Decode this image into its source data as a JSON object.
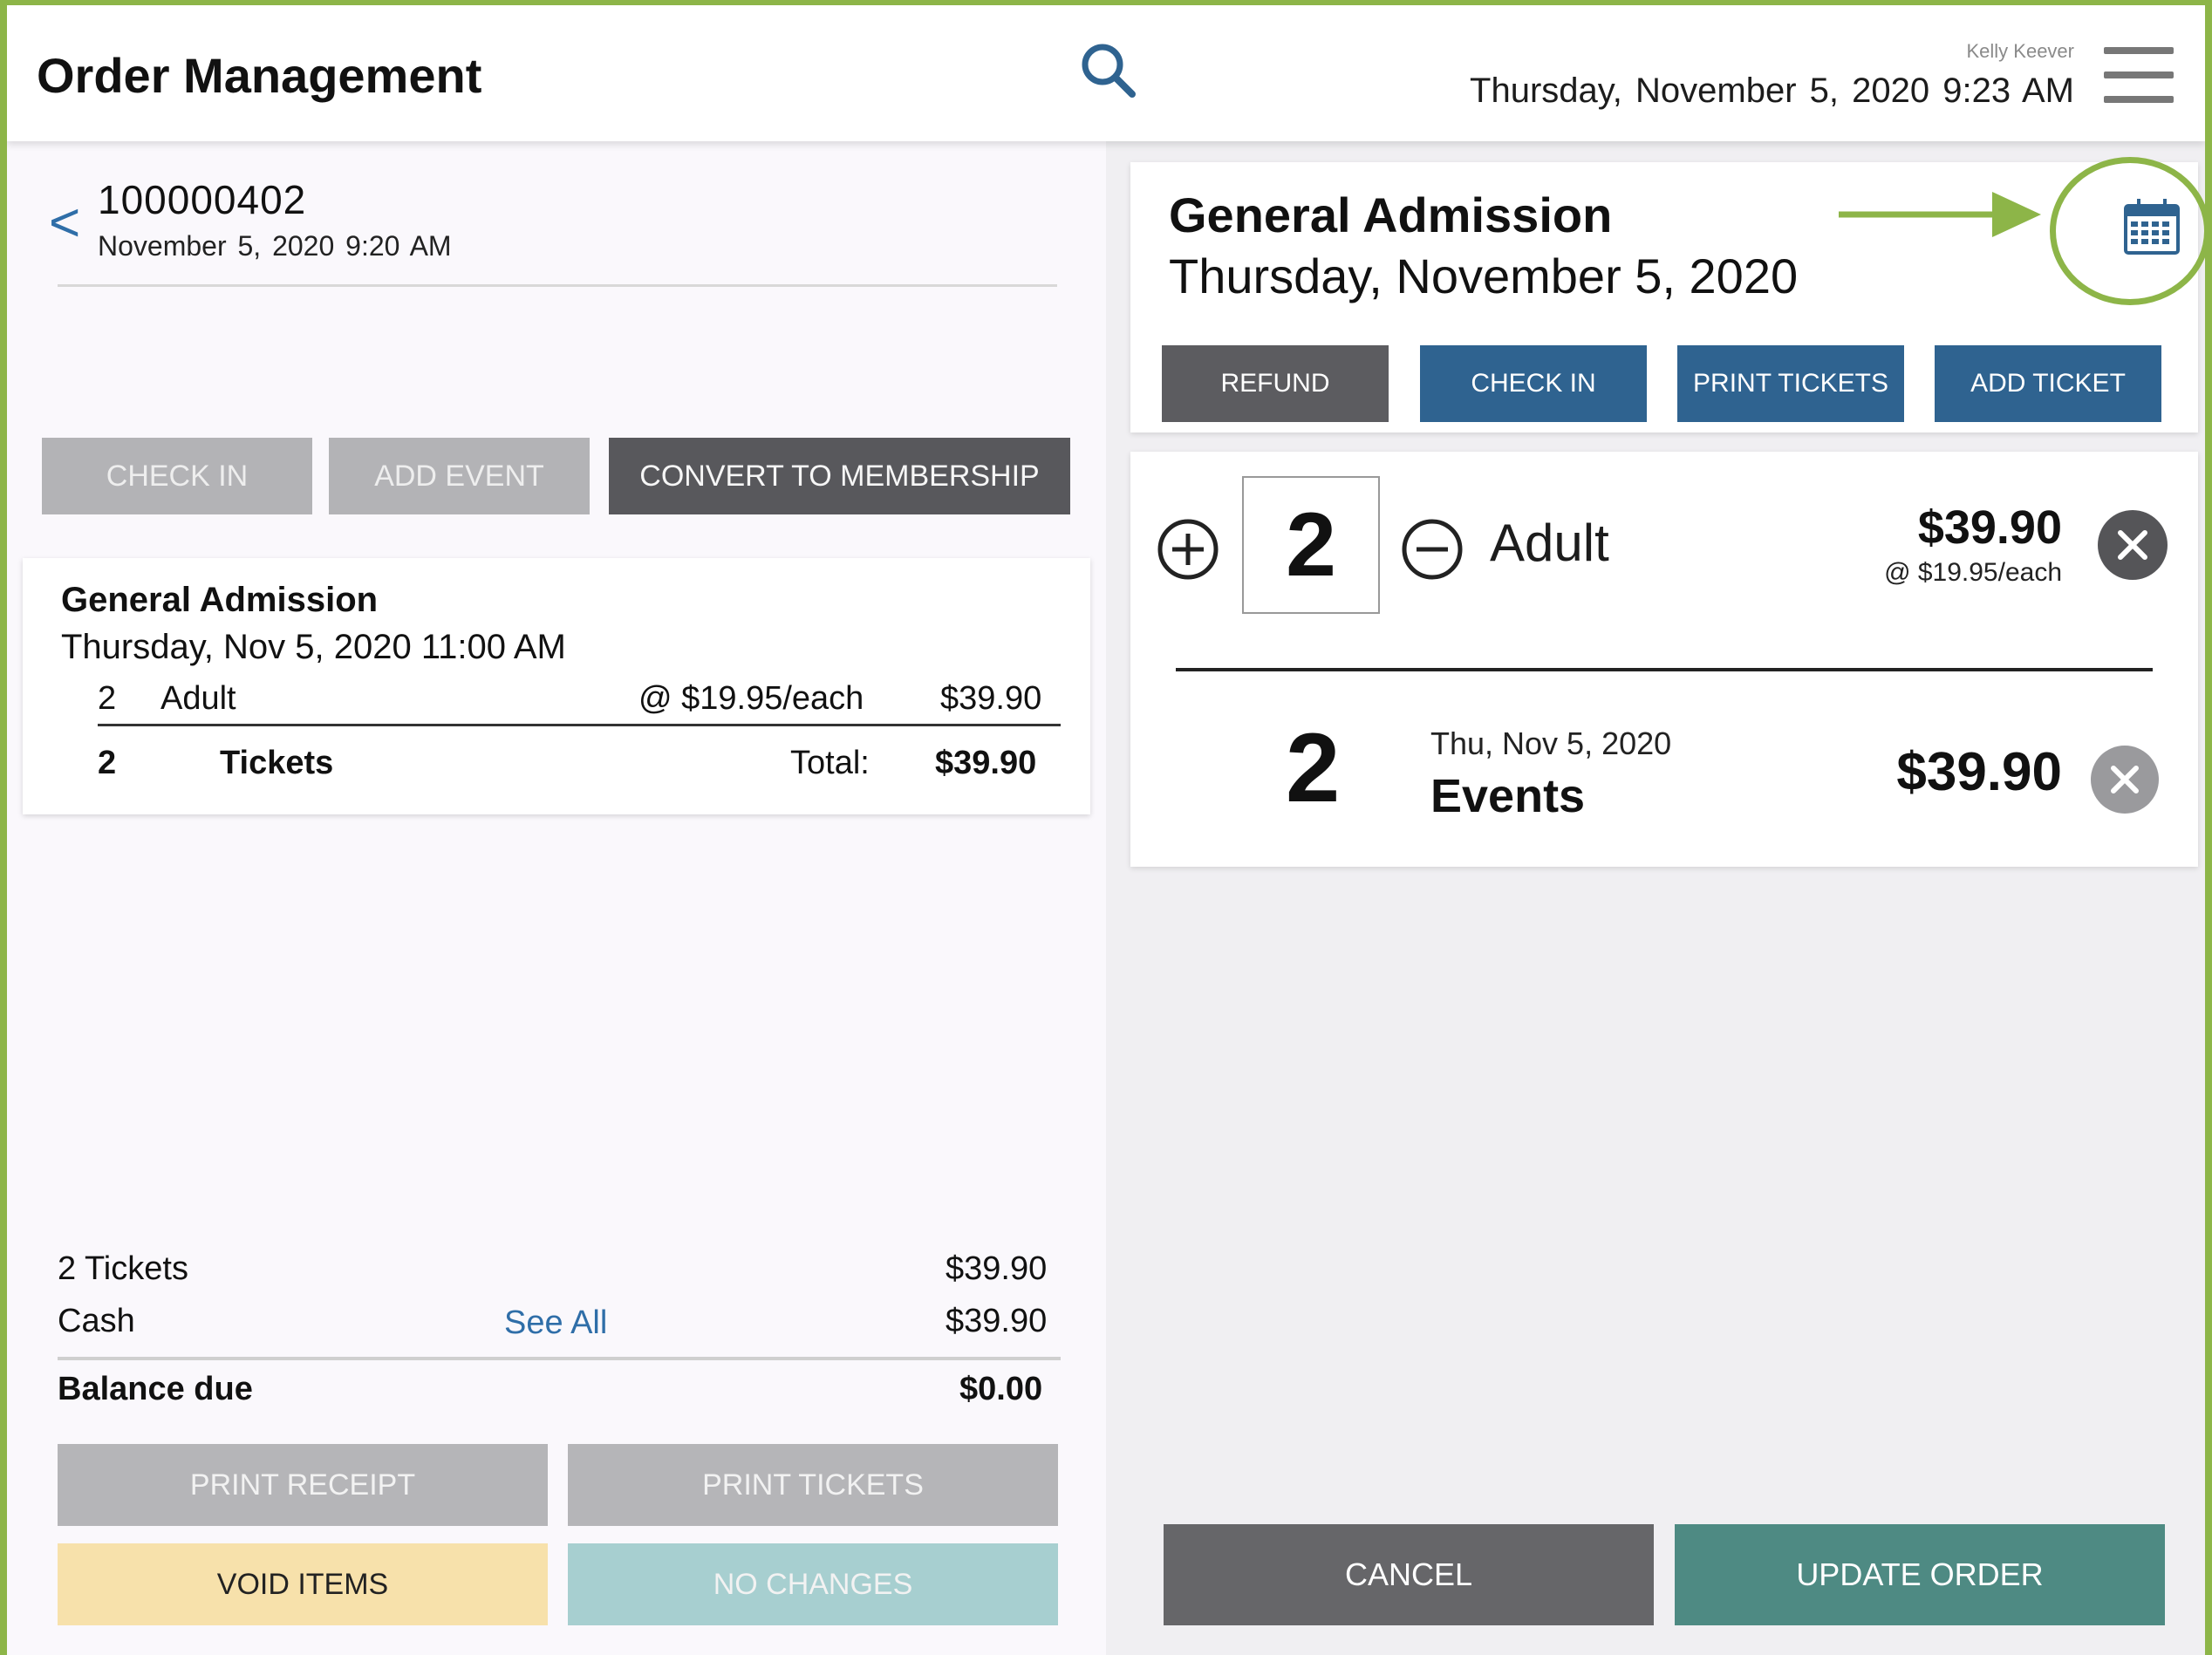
{
  "header": {
    "title": "Order Management",
    "user": "Kelly Keever",
    "date": "Thursday, November 5, 2020",
    "time": "9:23 AM"
  },
  "order": {
    "number": "100000402",
    "date": "November 5, 2020",
    "time": "9:20 AM",
    "buttons": {
      "check_in": "CHECK IN",
      "add_event": "ADD EVENT",
      "convert": "CONVERT TO MEMBERSHIP"
    },
    "event": {
      "title": "General Admission",
      "datetime": "Thursday, Nov 5, 2020 11:00 AM",
      "line": {
        "qty": "2",
        "type": "Adult",
        "unit_price": "@ $19.95/each",
        "amount": "$39.90"
      },
      "summary": {
        "qty": "2",
        "label": "Tickets",
        "total_label": "Total:",
        "total": "$39.90"
      }
    },
    "payment": {
      "tickets_label": "2 Tickets",
      "tickets_amount": "$39.90",
      "cash_label": "Cash",
      "see_all": "See All",
      "cash_amount": "$39.90",
      "balance_label": "Balance due",
      "balance_amount": "$0.00"
    },
    "actions": {
      "print_receipt": "PRINT RECEIPT",
      "print_tickets": "PRINT TICKETS",
      "void_items": "VOID ITEMS",
      "no_changes": "NO CHANGES"
    }
  },
  "detail": {
    "title": "General Admission",
    "date": "Thursday, November 5, 2020",
    "buttons": {
      "refund": "REFUND",
      "check_in": "CHECK IN",
      "print_tickets": "PRINT TICKETS",
      "add_ticket": "ADD TICKET"
    },
    "ticket": {
      "qty": "2",
      "type": "Adult",
      "price": "$39.90",
      "each": "@ $19.95/each"
    },
    "events": {
      "count": "2",
      "date": "Thu, Nov 5, 2020",
      "label": "Events",
      "total": "$39.90"
    },
    "footer": {
      "cancel": "CANCEL",
      "update": "UPDATE ORDER"
    }
  },
  "colors": {
    "accent_blue": "#2f6390",
    "link_blue": "#2f6ea8",
    "annotation_green": "#8db548",
    "update_teal": "#4e8a83"
  }
}
